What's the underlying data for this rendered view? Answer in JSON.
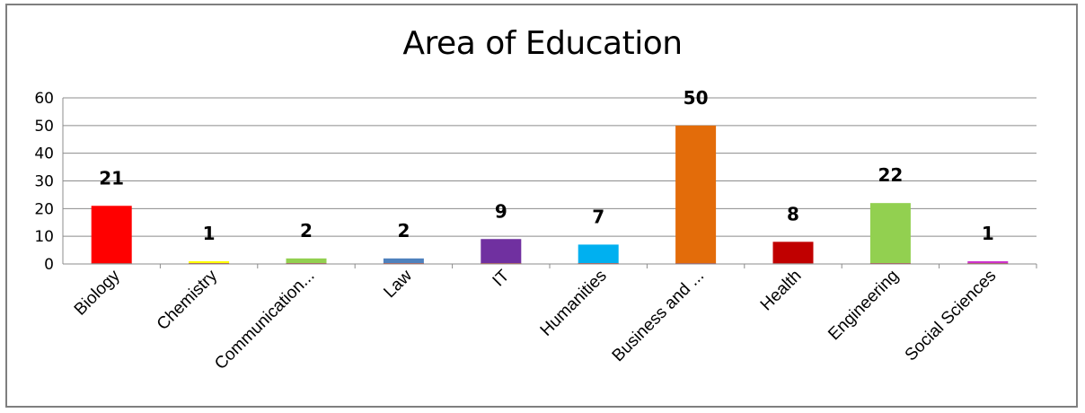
{
  "chart_data": {
    "type": "bar",
    "title": "Area of Education",
    "xlabel": "",
    "ylabel": "",
    "categories": [
      "Biology",
      "Chemistry",
      "Communication...",
      "Law",
      "IT",
      "Humanities",
      "Business and ...",
      "Health",
      "Engineering",
      "Social Sciences"
    ],
    "values": [
      21,
      1,
      2,
      2,
      9,
      7,
      50,
      8,
      22,
      1
    ],
    "colors": [
      "#ff0000",
      "#ffff00",
      "#92d050",
      "#4f81bd",
      "#7030a0",
      "#00b0f0",
      "#e36c0a",
      "#c00000",
      "#92d050",
      "#cc33cc"
    ],
    "ylim": [
      0,
      60
    ],
    "yticks": [
      0,
      10,
      20,
      30,
      40,
      50,
      60
    ],
    "grid": true,
    "legend": "none"
  }
}
